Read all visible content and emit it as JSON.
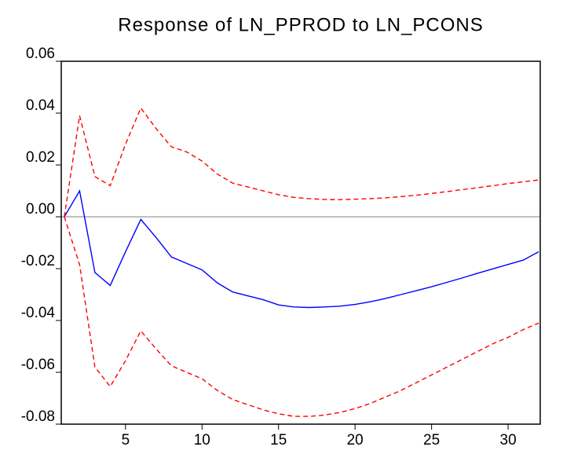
{
  "chart_data": {
    "type": "line",
    "title": "Response of LN_PPROD to LN_PCONS",
    "x": [
      1,
      2,
      3,
      4,
      5,
      6,
      7,
      8,
      9,
      10,
      11,
      12,
      13,
      14,
      15,
      16,
      17,
      18,
      19,
      20,
      21,
      22,
      23,
      24,
      25,
      26,
      27,
      28,
      29,
      30,
      31,
      32
    ],
    "series": [
      {
        "color": "#0000ff",
        "dash": "solid",
        "values": [
          0.0,
          0.01,
          -0.0215,
          -0.0265,
          -0.0135,
          -0.001,
          -0.008,
          -0.0155,
          -0.018,
          -0.0205,
          -0.0255,
          -0.029,
          -0.0305,
          -0.032,
          -0.034,
          -0.0348,
          -0.035,
          -0.0348,
          -0.0345,
          -0.0338,
          -0.0328,
          -0.0315,
          -0.03,
          -0.0285,
          -0.027,
          -0.0253,
          -0.0236,
          -0.0218,
          -0.0201,
          -0.0184,
          -0.0167,
          -0.0135
        ]
      },
      {
        "color": "#ff0000",
        "dash": "dashed",
        "values": [
          0.0,
          0.039,
          0.0155,
          0.012,
          0.028,
          0.042,
          0.034,
          0.027,
          0.025,
          0.0215,
          0.0165,
          0.013,
          0.0115,
          0.01,
          0.0085,
          0.0075,
          0.007,
          0.0067,
          0.0066,
          0.0068,
          0.007,
          0.0073,
          0.0078,
          0.0083,
          0.009,
          0.0097,
          0.0105,
          0.0112,
          0.012,
          0.0128,
          0.0135,
          0.0142
        ]
      },
      {
        "color": "#ff0000",
        "dash": "dashed",
        "values": [
          0.0,
          -0.0185,
          -0.058,
          -0.0655,
          -0.0555,
          -0.044,
          -0.051,
          -0.0575,
          -0.06,
          -0.0625,
          -0.067,
          -0.0705,
          -0.0725,
          -0.0745,
          -0.076,
          -0.077,
          -0.077,
          -0.0765,
          -0.0755,
          -0.074,
          -0.072,
          -0.0695,
          -0.067,
          -0.064,
          -0.061,
          -0.058,
          -0.055,
          -0.052,
          -0.049,
          -0.0465,
          -0.0435,
          -0.041
        ]
      }
    ],
    "xlim": [
      0.8,
      32.1
    ],
    "xticks": [
      5,
      10,
      15,
      20,
      25,
      30
    ],
    "ylim": [
      -0.08,
      0.06
    ],
    "yticks": [
      -0.08,
      -0.06,
      -0.04,
      -0.02,
      {
        "value": 0,
        "label": "0.00"
      },
      0.02,
      0.04,
      0.06
    ],
    "zero_line": true
  }
}
